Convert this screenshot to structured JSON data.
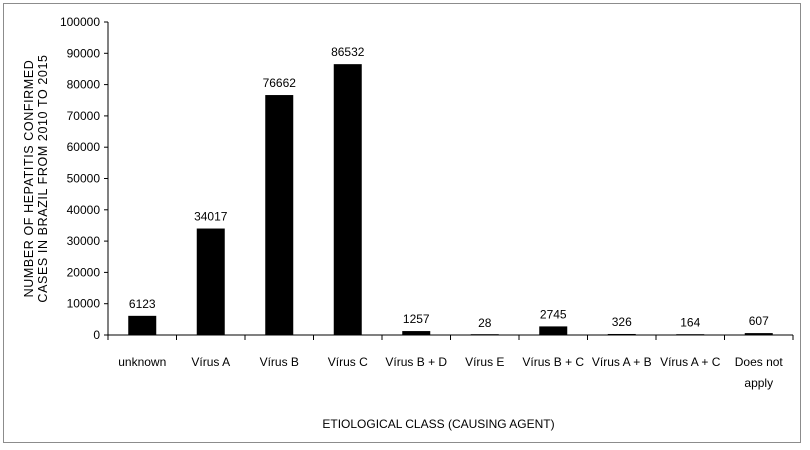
{
  "chart_data": {
    "type": "bar",
    "title": "",
    "categories": [
      [
        "unknown"
      ],
      [
        "Vírus A"
      ],
      [
        "Vírus B"
      ],
      [
        "Vírus C"
      ],
      [
        "Vírus B + D"
      ],
      [
        "Vírus E"
      ],
      [
        "Vírus B + C"
      ],
      [
        "Vírus A + B"
      ],
      [
        "Vírus A + C"
      ],
      [
        "Does not",
        "apply"
      ]
    ],
    "values": [
      6123,
      34017,
      76662,
      86532,
      1257,
      28,
      2745,
      326,
      164,
      607
    ],
    "value_labels": [
      "6123",
      "34017",
      "76662",
      "86532",
      "1257",
      "28",
      "2745",
      "326",
      "164",
      "607"
    ],
    "xlabel": "ETIOLOGICAL CLASS (CAUSING AGENT)",
    "ylabel": [
      "NUMBER OF HEPATITIS CONFIRMED",
      "CASES IN BRAZIL FROM 2010 TO 2015"
    ],
    "ylim": [
      0,
      100000
    ],
    "yticks": [
      0,
      10000,
      20000,
      30000,
      40000,
      50000,
      60000,
      70000,
      80000,
      90000,
      100000
    ],
    "bar_color": "#000000",
    "grid": false,
    "legend": "none"
  }
}
